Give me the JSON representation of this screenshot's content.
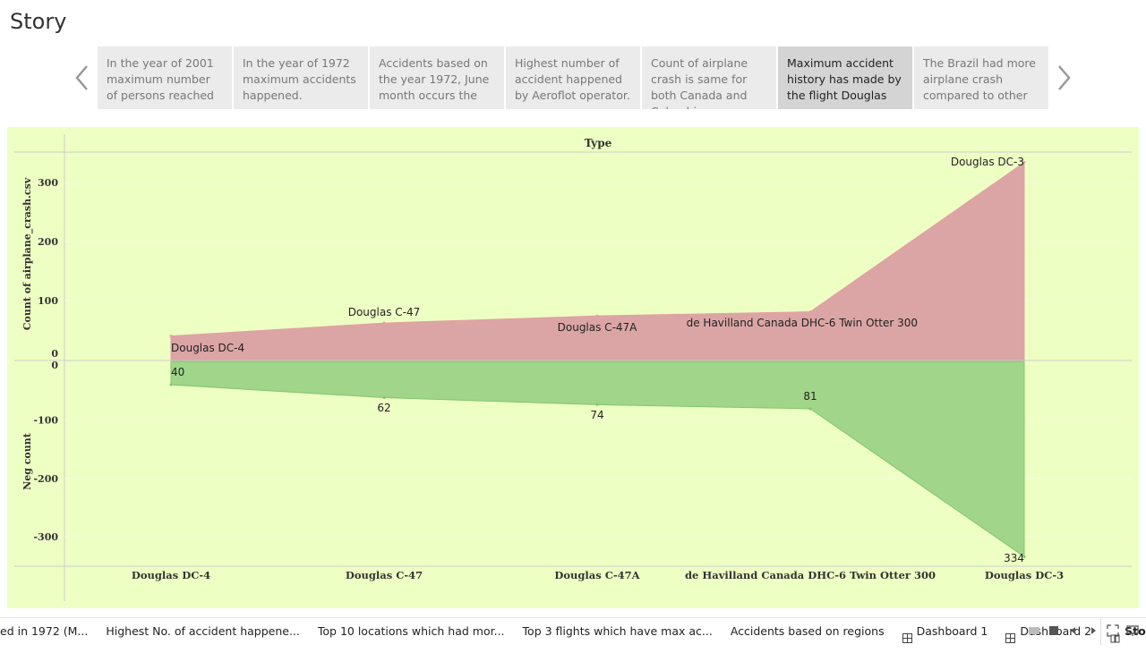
{
  "story": {
    "title": "Story",
    "points": [
      "In the year of 2001 maximum number of persons reached",
      "In the year of 1972 maximum accidents happened.",
      "Accidents based on the year 1972, June month occurs the",
      "Highest number of accident happened by Aeroflot operator.",
      "Count of airplane crash is same for both Canada and Colombia.",
      "Maximum accident history has made by the flight Douglas",
      "The Brazil had more airplane crash compared to other"
    ],
    "active_point": 5
  },
  "chart_data": {
    "type": "area",
    "title": "Type",
    "categories": [
      "Douglas DC-4",
      "Douglas C-47",
      "Douglas C-47A",
      "de Havilland Canada DHC-6 Twin Otter 300",
      "Douglas DC-3"
    ],
    "series": [
      {
        "name": "Count of airplane_crash.csv",
        "values": [
          40,
          62,
          74,
          81,
          334
        ]
      },
      {
        "name": "Neg count",
        "values": [
          -40,
          -62,
          -74,
          -81,
          -334
        ]
      }
    ],
    "top_labels": [
      "Douglas DC-4",
      "Douglas C-47",
      "Douglas C-47A",
      "de Havilland Canada DHC-6 Twin Otter 300",
      "Douglas DC-3"
    ],
    "bottom_labels": [
      "40",
      "62",
      "74",
      "81",
      "334"
    ],
    "top_axis": {
      "label": "Count of airplane_crash.csv",
      "ticks": [
        "0",
        "100",
        "200",
        "300"
      ],
      "range": [
        0,
        350
      ]
    },
    "bottom_axis": {
      "label": "Neg count",
      "ticks": [
        "0",
        "-100",
        "-200",
        "-300"
      ],
      "range": [
        0,
        -350
      ]
    },
    "colors": {
      "top": "#dba5a5",
      "bottom": "#a0d58a",
      "top_line": "#e6a0a0",
      "bottom_line": "#84c46c"
    }
  },
  "tabs": [
    {
      "label": "ed in 1972 (M...",
      "icon": ""
    },
    {
      "label": "Highest No. of accident happene...",
      "icon": ""
    },
    {
      "label": "Top 10 locations which had mor...",
      "icon": ""
    },
    {
      "label": "Top 3 flights which have max ac...",
      "icon": ""
    },
    {
      "label": "Accidents based on regions",
      "icon": ""
    },
    {
      "label": "Dashboard 1",
      "icon": "dashboard-icon"
    },
    {
      "label": "Dashboard 2",
      "icon": "dashboard-icon"
    },
    {
      "label": "Story",
      "icon": "story-icon"
    }
  ],
  "active_tab": 7
}
